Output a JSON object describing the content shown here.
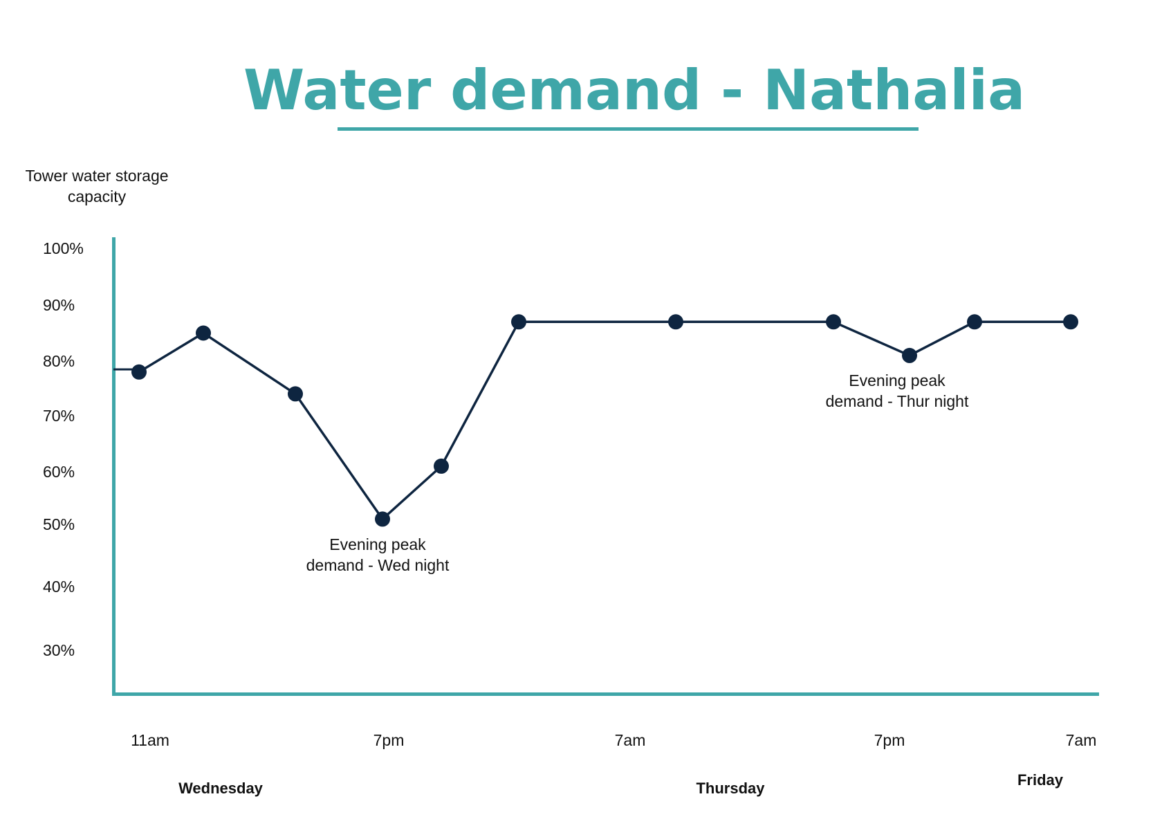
{
  "chart_data": {
    "type": "line",
    "title": "Water demand - Nathalia",
    "ylabel": [
      "Tower water storage",
      "capacity"
    ],
    "y_ticks": [
      "100%",
      "90%",
      "80%",
      "70%",
      "60%",
      "50%",
      "40%",
      "30%"
    ],
    "x_ticks": [
      "11am",
      "7pm",
      "7am",
      "7pm",
      "7am"
    ],
    "day_labels": [
      "Wednesday",
      "Thursday",
      "Friday"
    ],
    "series": [
      {
        "values": [
          78,
          85,
          74,
          51,
          61,
          87,
          87,
          87,
          81,
          87,
          87
        ]
      }
    ],
    "annotations": [
      [
        "Evening peak",
        "demand - Wed night"
      ],
      [
        "Evening peak",
        "demand - Thur night"
      ]
    ],
    "colors": {
      "accent": "#3fa6a8",
      "line": "#0e2540",
      "text": "#111111"
    }
  }
}
